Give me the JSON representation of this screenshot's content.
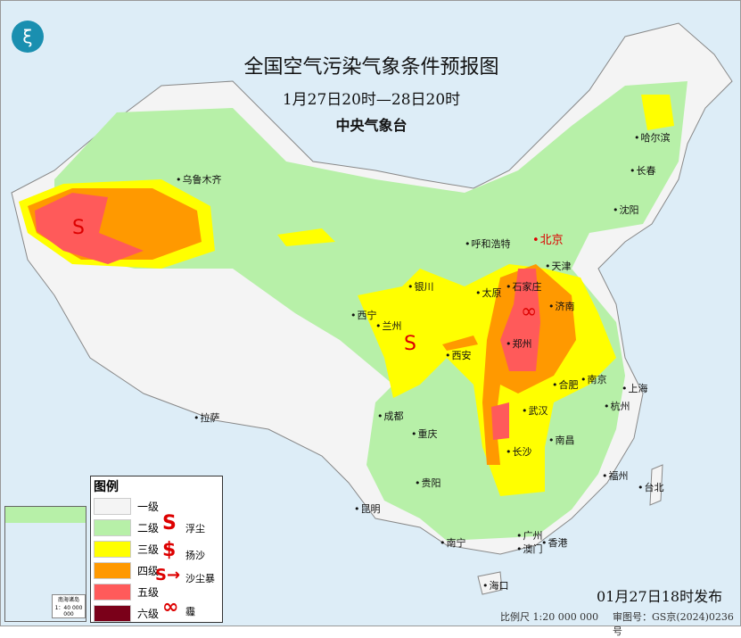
{
  "title": "全国空气污染气象条件预报图",
  "subtitle": "1月27日20时—28日20时",
  "agency": "中央气象台",
  "issue_time": "01月27日18时发布",
  "scale": "比例尺 1:20 000 000",
  "review_no": "审图号：GS京(2024)0236号",
  "inset": {
    "label": "南海诸岛",
    "scale": "1：40 000 000"
  },
  "colors": {
    "level1": "#f4f4f4",
    "level2": "#b7f0a8",
    "level3": "#ffff00",
    "level4": "#ff9900",
    "level5": "#ff5a5a",
    "level6": "#7a0019",
    "symbol": "#d40000"
  },
  "legend": {
    "title": "图例",
    "levels": [
      "一级",
      "二级",
      "三级",
      "四级",
      "五级",
      "六级"
    ],
    "symbols": [
      {
        "icon": "S",
        "label": "浮尘"
      },
      {
        "icon": "$",
        "label": "扬沙"
      },
      {
        "icon": "S→",
        "label": "沙尘暴"
      },
      {
        "icon": "∞",
        "label": "霾"
      }
    ]
  },
  "map_symbols": {
    "dust_xinjiang": "S",
    "dust_gansu": "S",
    "haze_hebei": "∞"
  },
  "capital": "北京",
  "cities": [
    "乌鲁木齐",
    "哈尔滨",
    "长春",
    "沈阳",
    "呼和浩特",
    "天津",
    "石家庄",
    "太原",
    "银川",
    "西宁",
    "兰州",
    "济南",
    "郑州",
    "西安",
    "合肥",
    "南京",
    "上海",
    "杭州",
    "武汉",
    "成都",
    "拉萨",
    "重庆",
    "长沙",
    "南昌",
    "贵阳",
    "福州",
    "台北",
    "昆明",
    "南宁",
    "广州",
    "澳门",
    "香港",
    "海口"
  ]
}
